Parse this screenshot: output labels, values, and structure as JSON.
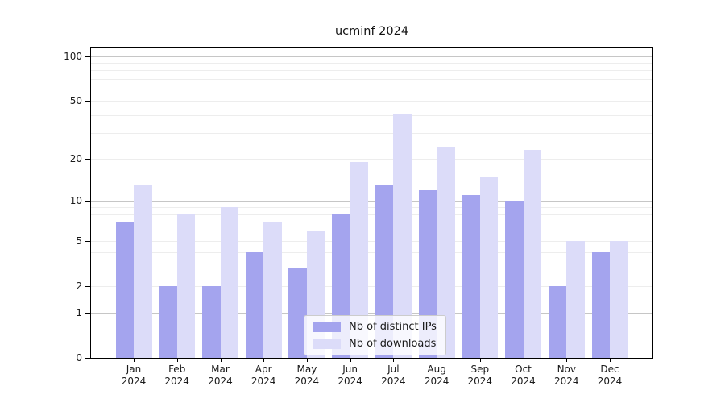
{
  "figure": {
    "title": "ucminf 2024"
  },
  "chart_data": {
    "type": "bar",
    "title": "ucminf 2024",
    "categories": [
      "Jan",
      "Feb",
      "Mar",
      "Apr",
      "May",
      "Jun",
      "Jul",
      "Aug",
      "Sep",
      "Oct",
      "Nov",
      "Dec"
    ],
    "year": "2024",
    "series": [
      {
        "name": "Nb of distinct IPs",
        "color": "#a4a4ee",
        "values": [
          7,
          2,
          2,
          4,
          3,
          8,
          13,
          12,
          11,
          10,
          2,
          4
        ]
      },
      {
        "name": "Nb of downloads",
        "color": "#dcdcf9",
        "values": [
          13,
          8,
          9,
          7,
          6,
          19,
          41,
          24,
          15,
          23,
          5,
          5
        ]
      }
    ],
    "yscale": "log1p",
    "ylim": [
      0,
      114
    ],
    "yticks": [
      0,
      1,
      2,
      5,
      10,
      20,
      50,
      100
    ],
    "gridlines": {
      "major": [
        1,
        10,
        100
      ],
      "minor": [
        2,
        3,
        4,
        5,
        6,
        7,
        8,
        9,
        20,
        30,
        40,
        50,
        60,
        70,
        80,
        90
      ]
    },
    "legend_position": "lower center",
    "grid": true,
    "colors": {
      "major_grid": "#c6c6c6",
      "minor_grid": "#ededed",
      "spine": "#000000",
      "text": "#1a1a1a",
      "legend_border": "#cccccc"
    }
  }
}
